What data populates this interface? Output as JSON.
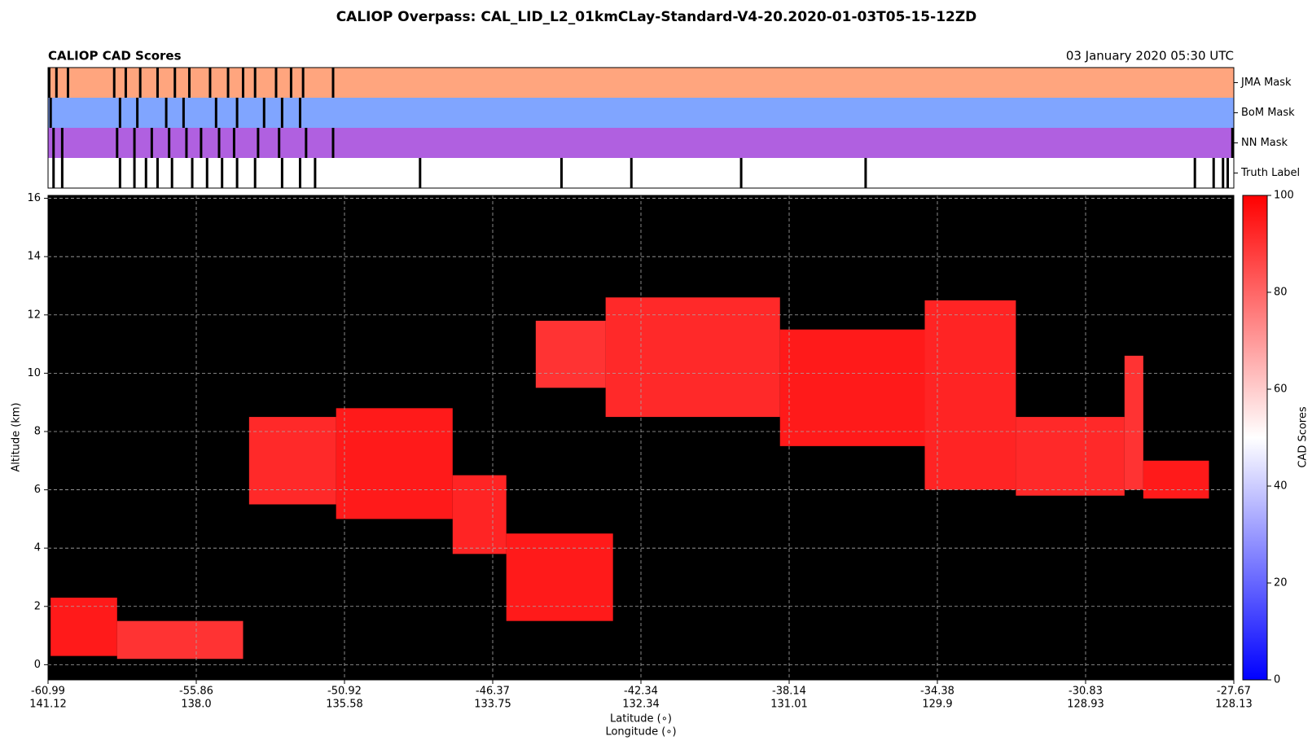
{
  "chart_data": {
    "type": "curtain",
    "title": "CALIOP Overpass: CAL_LID_L2_01kmCLay-Standard-V4-20.2020-01-03T05-15-12ZD",
    "subtitle": "CALIOP CAD Scores",
    "date": "03 January 2020 05:30 UTC",
    "ylabel": "Altitude (km)",
    "xlabel": "Latitude (∘)",
    "x2label": "Longitude (∘)",
    "latitudes": [
      -60.99,
      -55.86,
      -50.92,
      -46.37,
      -42.34,
      -38.14,
      -34.38,
      -30.83,
      -27.67
    ],
    "longitudes": [
      141.12,
      {
        "value": 138,
        "label": "138.0"
      },
      135.58,
      133.75,
      132.34,
      131.01,
      129.9,
      128.93,
      128.13
    ],
    "ylim": [
      -0.52,
      16.1
    ],
    "yticks": [
      0,
      2,
      4,
      6,
      8,
      10,
      12,
      14,
      16
    ],
    "grid": true,
    "layers": {
      "lat_start": [
        -60.9,
        -58.6,
        -54.1,
        -51.2,
        -47.6,
        -46.0,
        -45.2,
        -43.3,
        -38.4,
        -34.7,
        -32.5,
        -30.0,
        -29.6
      ],
      "lat_end": [
        -58.6,
        -54.3,
        -51.2,
        -47.6,
        -46.0,
        -43.1,
        -43.3,
        -38.4,
        -34.7,
        -32.5,
        -30.0,
        -29.6,
        -28.2
      ],
      "base": [
        0.3,
        0.2,
        5.5,
        5.0,
        3.8,
        1.5,
        9.5,
        8.5,
        7.5,
        6.0,
        5.8,
        6.0,
        5.7
      ],
      "top": [
        2.3,
        1.5,
        8.5,
        8.8,
        6.5,
        4.5,
        11.8,
        12.6,
        11.5,
        12.5,
        8.5,
        10.6,
        7.0
      ],
      "cad": [
        95,
        90,
        92,
        95,
        93,
        95,
        90,
        92,
        95,
        93,
        92,
        90,
        95
      ]
    },
    "colorbar": {
      "label": "CAD Scores",
      "lim": [
        0,
        100
      ],
      "ticks": [
        0,
        20,
        40,
        60,
        80,
        100
      ],
      "colors": [
        "#0000ff",
        "#ffffff",
        "#ff0000"
      ]
    },
    "masks": [
      {
        "name": "JMA Mask",
        "color": "#ffa57e",
        "cloud_lats": [
          -60.95,
          -60.7,
          -60.3,
          -58.7,
          -58.3,
          -57.8,
          -57.2,
          -56.6,
          -56.1,
          -55.4,
          -54.8,
          -54.3,
          -53.9,
          -53.2,
          -52.7,
          -52.3,
          -51.3
        ]
      },
      {
        "name": "BoM Mask",
        "color": "#80a5ff",
        "cloud_lats": [
          -60.9,
          -58.5,
          -57.9,
          -56.9,
          -56.3,
          -55.2,
          -54.5,
          -53.6,
          -53.0,
          -52.4
        ]
      },
      {
        "name": "NN Mask",
        "color": "#b060e0",
        "cloud_lats": [
          -60.8,
          -60.5,
          -58.6,
          -58.0,
          -57.4,
          -56.8,
          -56.2,
          -55.7,
          -55.1,
          -54.6,
          -53.8,
          -53.1,
          -52.2,
          -51.3,
          -27.7
        ]
      },
      {
        "name": "Truth Label",
        "color": "#ffffff",
        "cloud_lats": [
          -60.8,
          -60.5,
          -58.5,
          -58.0,
          -57.6,
          -57.2,
          -56.7,
          -56.0,
          -55.5,
          -55.0,
          -54.5,
          -53.9,
          -53.0,
          -52.4,
          -51.9,
          -48.6,
          -44.5,
          -42.6,
          -39.5,
          -36.2,
          -28.5,
          -28.1,
          -27.9,
          -27.8
        ]
      }
    ]
  }
}
